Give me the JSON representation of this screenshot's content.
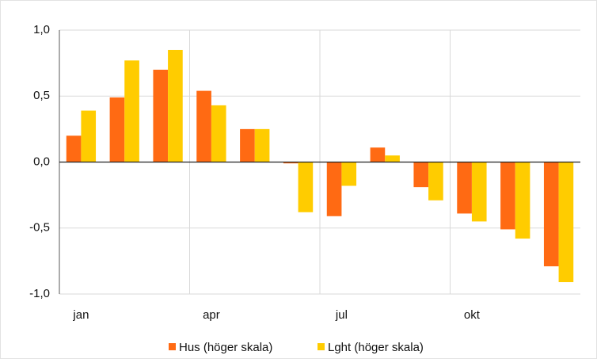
{
  "chart_data": {
    "type": "bar",
    "categories": [
      "jan",
      null,
      null,
      "apr",
      null,
      null,
      "jul",
      null,
      null,
      "okt",
      null,
      null
    ],
    "series": [
      {
        "name": "Hus (höger skala)",
        "color": "#ff6a13",
        "values": [
          0.2,
          0.49,
          0.7,
          0.54,
          0.25,
          -0.01,
          -0.41,
          0.11,
          -0.19,
          -0.39,
          -0.51,
          -0.79
        ]
      },
      {
        "name": "Lght (höger skala)",
        "color": "#ffcc00",
        "values": [
          0.39,
          0.77,
          0.85,
          0.43,
          0.25,
          -0.38,
          -0.18,
          0.05,
          -0.29,
          -0.45,
          -0.58,
          -0.91
        ]
      }
    ],
    "ylim": [
      -1.0,
      1.0
    ],
    "yticks": [
      {
        "value": -1.0,
        "label": "-1,0"
      },
      {
        "value": -0.5,
        "label": "-0,5"
      },
      {
        "value": 0,
        "label": "0,0"
      },
      {
        "value": 0.5,
        "label": "0,5"
      },
      {
        "value": 1.0,
        "label": "1,0"
      }
    ],
    "grid": true,
    "legend": "bottom"
  }
}
